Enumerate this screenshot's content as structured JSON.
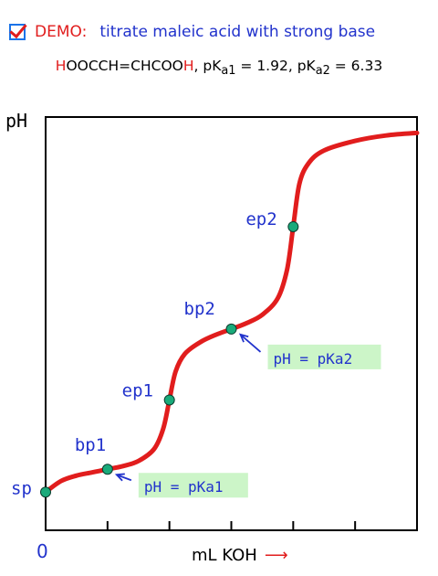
{
  "header": {
    "demo_label": "DEMO:",
    "demo_text": "titrate maleic acid with strong base"
  },
  "formula": {
    "first_h": "H",
    "middle": "OOCCH=CHCOO",
    "last_h": "H",
    "pka1_prefix": ",  pK",
    "pka1_sub": "a1",
    "pka1_value": " = 1.92,",
    "pka2_prefix": "  pK",
    "pka2_sub": "a2",
    "pka2_value": " = 6.33"
  },
  "chart_data": {
    "type": "line",
    "xlabel": "mL KOH",
    "ylabel": "pH",
    "x_origin_label": "0",
    "x_ticks": [
      1,
      2,
      3,
      4,
      5
    ],
    "xlim": [
      0,
      6
    ],
    "grid": false,
    "series": [
      {
        "color": "#e11d1d",
        "x": [
          0,
          0.25,
          0.5,
          0.75,
          1.0,
          1.25,
          1.5,
          1.75,
          1.9,
          2.0,
          2.1,
          2.25,
          2.5,
          2.75,
          3.0,
          3.25,
          3.5,
          3.75,
          3.9,
          4.0,
          4.1,
          4.25,
          4.5,
          5.0,
          5.5,
          6.0
        ],
        "y": [
          1.2,
          1.55,
          1.72,
          1.82,
          1.92,
          2.02,
          2.18,
          2.55,
          3.2,
          4.1,
          5.0,
          5.55,
          5.92,
          6.15,
          6.33,
          6.52,
          6.78,
          7.3,
          8.2,
          9.55,
          10.9,
          11.55,
          11.95,
          12.25,
          12.42,
          12.5
        ]
      }
    ],
    "points": [
      {
        "label": "sp",
        "x": 0,
        "y": 1.2
      },
      {
        "label": "bp1",
        "x": 1.0,
        "y": 1.92
      },
      {
        "label": "ep1",
        "x": 2.0,
        "y": 4.1
      },
      {
        "label": "bp2",
        "x": 3.0,
        "y": 6.33
      },
      {
        "label": "ep2",
        "x": 4.0,
        "y": 9.55
      }
    ],
    "point_color": "#1aaa7a",
    "annotations": [
      {
        "text": "pH = pKa1",
        "target": "bp1",
        "background": "#ccf5c8"
      },
      {
        "text": "pH = pKa2",
        "target": "bp2",
        "background": "#ccf5c8"
      }
    ]
  }
}
